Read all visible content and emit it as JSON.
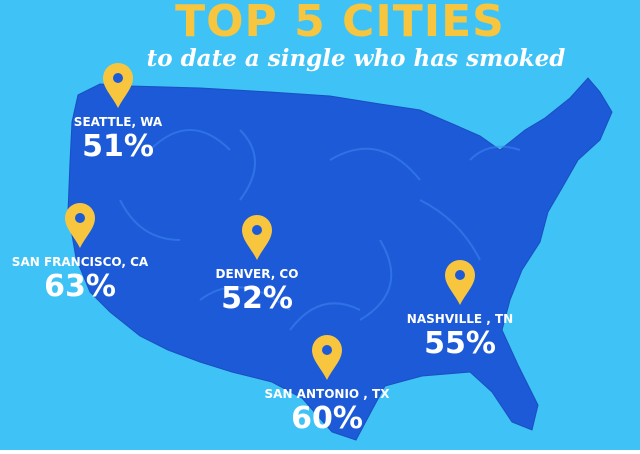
{
  "header": {
    "title": "TOP 5 CITIES",
    "subtitle": "to date a single who has smoked"
  },
  "cities": [
    {
      "name": "SEATTLE, WA",
      "percent": "51%"
    },
    {
      "name": "SAN FRANCISCO, CA",
      "percent": "63%"
    },
    {
      "name": "DENVER, CO",
      "percent": "52%"
    },
    {
      "name": "NASHVILLE , TN",
      "percent": "55%"
    },
    {
      "name": "SAN ANTONIO , TX",
      "percent": "60%"
    }
  ]
}
